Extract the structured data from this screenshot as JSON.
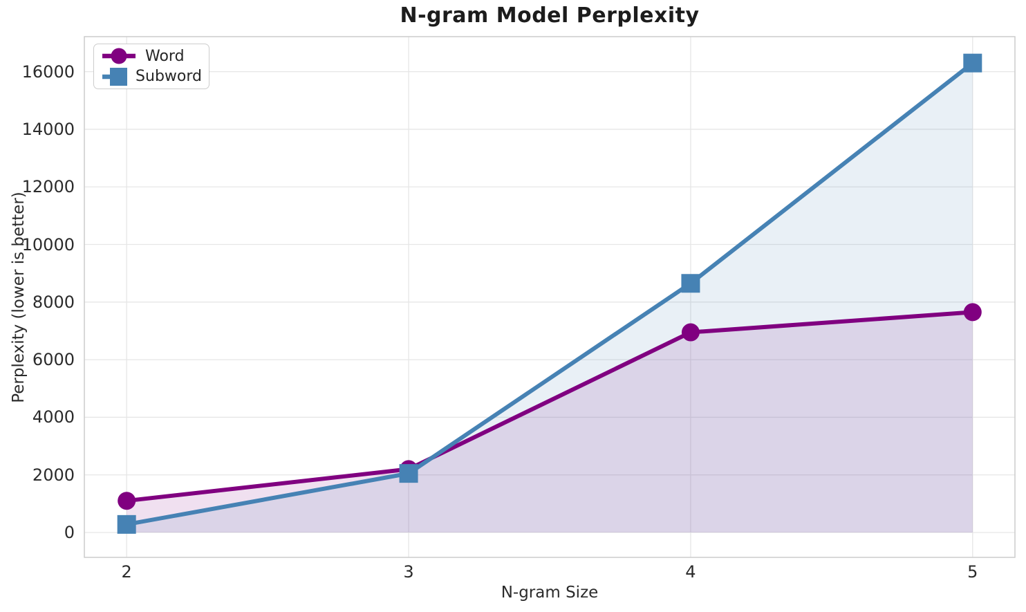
{
  "figure": {
    "background": "#ffffff"
  },
  "colors": {
    "grid": "#e6e6e6",
    "spine": "#cccccc",
    "tick_text": "#2b2b2b",
    "title_text": "#1c1c1c",
    "legend_border": "#cccccc",
    "word_accent": "#800080",
    "subword_accent": "#4682b4"
  },
  "chart_data": {
    "type": "line",
    "title": "N-gram Model Perplexity",
    "xlabel": "N-gram Size",
    "ylabel": "Perplexity (lower is better)",
    "x": [
      2,
      3,
      4,
      5
    ],
    "xtick_labels": [
      "2",
      "3",
      "4",
      "5"
    ],
    "yticks": [
      0,
      2000,
      4000,
      6000,
      8000,
      10000,
      12000,
      14000,
      16000
    ],
    "ytick_labels": [
      "0",
      "2000",
      "4000",
      "6000",
      "8000",
      "10000",
      "12000",
      "14000",
      "16000"
    ],
    "xlim": [
      1.85,
      5.15
    ],
    "ylim": [
      -864,
      17216
    ],
    "grid": true,
    "legend_position": "upper-left",
    "fill_to_zero": true,
    "fill_alpha": 0.12,
    "series": [
      {
        "name": "Word",
        "color": "#800080",
        "marker": "circle",
        "values": [
          1100,
          2200,
          6950,
          7650
        ]
      },
      {
        "name": "Subword",
        "color": "#4682b4",
        "marker": "square",
        "values": [
          280,
          2050,
          8650,
          16300
        ]
      }
    ]
  }
}
